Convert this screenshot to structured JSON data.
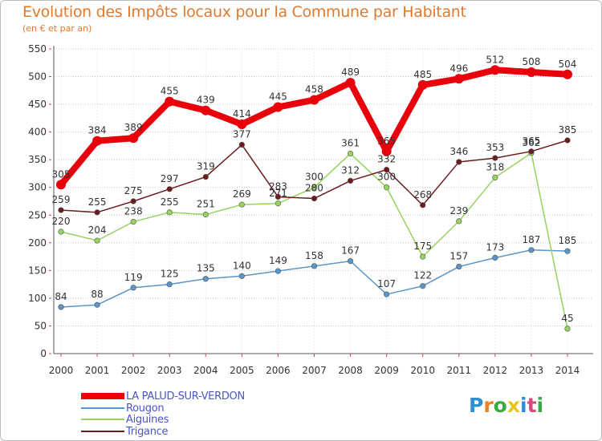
{
  "title": "Evolution des Impôts locaux pour la Commune par Habitant",
  "subtitle": "(en € et par an)",
  "logo_text": "Proxiti",
  "chart_data": {
    "type": "line",
    "title": "Evolution des Impôts locaux pour la Commune par Habitant",
    "ylabel": "(en € et par an)",
    "xlabel": "",
    "ylim": [
      0,
      550
    ],
    "yticks": [
      0,
      50,
      100,
      150,
      200,
      250,
      300,
      350,
      400,
      450,
      500,
      550
    ],
    "grid": "horizontal dotted",
    "legend_position": "bottom",
    "categories": [
      "2000",
      "2001",
      "2002",
      "2003",
      "2004",
      "2005",
      "2006",
      "2007",
      "2008",
      "2009",
      "2010",
      "2011",
      "2012",
      "2013",
      "2014"
    ],
    "series": [
      {
        "name": "LA PALUD-SUR-VERDON",
        "color": "#e8000b",
        "values": [
          305,
          384,
          389,
          455,
          439,
          414,
          445,
          458,
          489,
          365,
          485,
          496,
          512,
          508,
          504
        ]
      },
      {
        "name": "Rougon",
        "color": "#5b96c9",
        "values": [
          84,
          88,
          119,
          125,
          135,
          140,
          149,
          158,
          167,
          107,
          122,
          157,
          173,
          187,
          185
        ]
      },
      {
        "name": "Aiguines",
        "color": "#96d35f",
        "values": [
          220,
          204,
          238,
          255,
          251,
          269,
          271,
          300,
          361,
          300,
          175,
          239,
          318,
          362,
          45
        ]
      },
      {
        "name": "Trigance",
        "color": "#6b1c1c",
        "values": [
          259,
          255,
          275,
          297,
          319,
          377,
          283,
          280,
          312,
          332,
          268,
          346,
          353,
          365,
          385
        ]
      }
    ]
  }
}
